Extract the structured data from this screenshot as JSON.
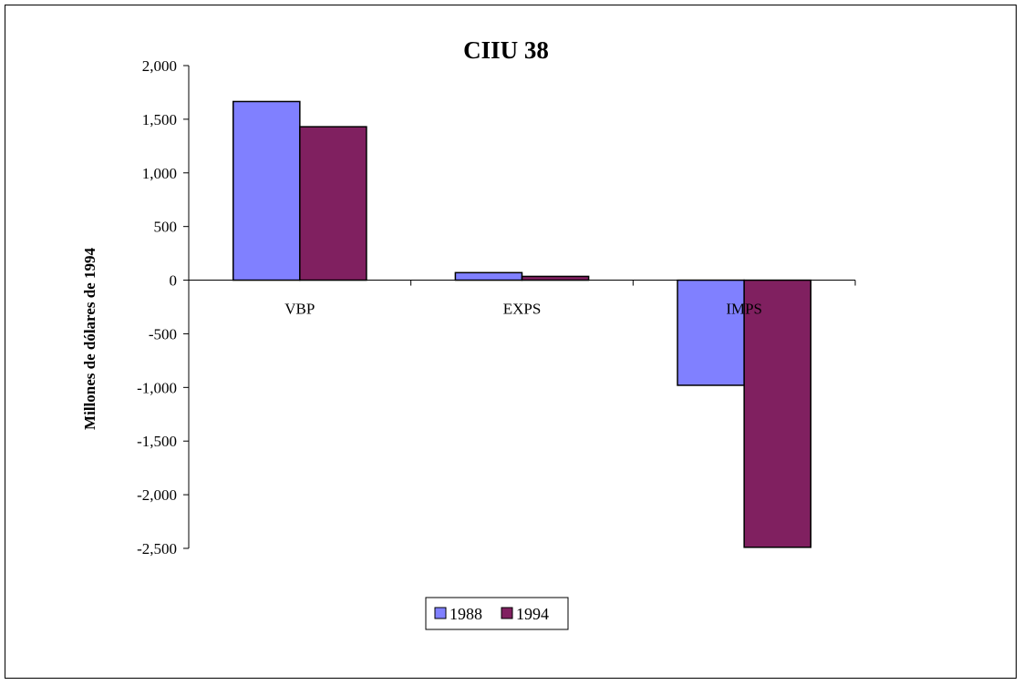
{
  "chart_data": {
    "type": "bar",
    "title": "CIIU 38",
    "xlabel": "",
    "ylabel": "Millones de dólares de 1994",
    "categories": [
      "VBP",
      "EXPS",
      "IMPS"
    ],
    "series": [
      {
        "name": "1988",
        "values": [
          1665,
          70,
          -980
        ],
        "color": "#8080FF"
      },
      {
        "name": "1994",
        "values": [
          1430,
          35,
          -2490
        ],
        "color": "#802060"
      }
    ],
    "ylim": [
      -2500,
      2000
    ],
    "yticks": [
      2000,
      1500,
      1000,
      500,
      0,
      -500,
      -1000,
      -1500,
      -2000,
      -2500
    ],
    "ytick_labels": [
      "2,000",
      "1,500",
      "1,000",
      "500",
      "0",
      "-500",
      "-1,000",
      "-1,500",
      "-2,000",
      "-2,500"
    ],
    "grid": false,
    "legend_position": "bottom-center"
  }
}
